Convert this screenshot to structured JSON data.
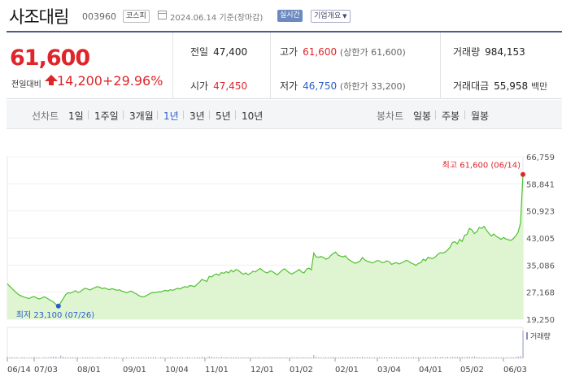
{
  "header": {
    "name": "사조대림",
    "code": "003960",
    "market": "코스피",
    "date": "2024.06.14 기준(장마감)",
    "live": "실시간",
    "company_info": "기업개요"
  },
  "quote": {
    "price": "61,600",
    "change_label": "전일대비",
    "change": "14,200",
    "change_pct": "+29.96%",
    "prev_close": {
      "label": "전일",
      "value": "47,400"
    },
    "high": {
      "label": "고가",
      "value": "61,600",
      "sub": "(상한가 61,600)"
    },
    "volume": {
      "label": "거래량",
      "value": "984,153"
    },
    "open": {
      "label": "시가",
      "value": "47,450"
    },
    "low": {
      "label": "저가",
      "value": "46,750",
      "sub": "(하한가 33,200)"
    },
    "amount": {
      "label": "거래대금",
      "value": "55,958",
      "unit": "백만"
    }
  },
  "tabs": {
    "line_label": "선차트",
    "periods": [
      "1일",
      "1주일",
      "3개월",
      "1년",
      "3년",
      "5년",
      "10년"
    ],
    "selected": "1년",
    "candle_label": "봉차트",
    "candles": [
      "일봉",
      "주봉",
      "월봉"
    ]
  },
  "chart_data": {
    "type": "area",
    "ylim": [
      19250,
      66759
    ],
    "yticks": [
      "66,759",
      "58,841",
      "50,923",
      "43,005",
      "35,086",
      "27,168",
      "19,250"
    ],
    "xticks": [
      "06/14",
      "07/03",
      "08/01",
      "09/01",
      "10/04",
      "11/01",
      "12/01",
      "01/02",
      "02/01",
      "03/04",
      "04/01",
      "05/02",
      "06/03"
    ],
    "max_label": "최고 61,600 (06/14)",
    "min_label": "최저 23,100 (07/26)",
    "volume_label": "거래량",
    "colors": {
      "line": "#4fc12f",
      "fill": "#dff5d2",
      "max": "#e0252a",
      "min": "#2b5dc9"
    },
    "values": [
      29600,
      28900,
      28200,
      27500,
      26800,
      26300,
      26000,
      25700,
      25500,
      25300,
      25700,
      25900,
      25500,
      25200,
      25400,
      25800,
      25600,
      25100,
      24700,
      24300,
      23600,
      23100,
      24200,
      25300,
      26500,
      27000,
      26900,
      27200,
      27600,
      27100,
      27300,
      27900,
      28300,
      28100,
      27800,
      28200,
      28500,
      28800,
      28600,
      28200,
      28400,
      28100,
      27900,
      28200,
      28000,
      27700,
      27900,
      27500,
      27300,
      27000,
      27300,
      27500,
      27000,
      26700,
      26200,
      25900,
      25800,
      26100,
      26500,
      26900,
      27100,
      27000,
      27300,
      27200,
      27500,
      27700,
      27500,
      27900,
      27700,
      28000,
      28300,
      28100,
      28500,
      28800,
      28600,
      29100,
      29000,
      28800,
      29500,
      30100,
      30900,
      30600,
      30300,
      31800,
      31600,
      32200,
      32500,
      32100,
      32900,
      32700,
      33200,
      32800,
      33600,
      33100,
      33800,
      33500,
      32900,
      32400,
      32800,
      32300,
      32700,
      33300,
      33100,
      33700,
      34100,
      33500,
      33000,
      32800,
      33400,
      33200,
      32700,
      32200,
      32900,
      33600,
      34000,
      33400,
      32800,
      32500,
      32900,
      33300,
      33800,
      33100,
      32800,
      33900,
      34200,
      33700,
      38600,
      37500,
      37400,
      37600,
      37300,
      36800,
      37100,
      37900,
      38500,
      38900,
      38000,
      37700,
      37500,
      37800,
      36900,
      36400,
      36000,
      35600,
      35900,
      36200,
      37300,
      36600,
      36200,
      36000,
      35700,
      36000,
      36400,
      36300,
      35800,
      35900,
      36300,
      36100,
      35300,
      35600,
      35800,
      35400,
      35700,
      36100,
      36500,
      36200,
      35700,
      35400,
      35000,
      35600,
      35800,
      36800,
      36400,
      37400,
      37100,
      37000,
      37500,
      38200,
      38700,
      38600,
      38900,
      39500,
      40300,
      41700,
      41900,
      41300,
      42600,
      42000,
      43800,
      44100,
      45800,
      45400,
      44300,
      44800,
      46100,
      45800,
      46400,
      45300,
      44400,
      43600,
      44200,
      43500,
      43100,
      42600,
      43200,
      42700,
      42500,
      42300,
      42800,
      43600,
      44700,
      47400,
      61600
    ],
    "volumes": [
      3,
      2,
      2,
      2,
      2,
      1,
      2,
      2,
      1,
      2,
      2,
      3,
      2,
      2,
      1,
      2,
      2,
      2,
      3,
      4,
      3,
      2,
      6,
      3,
      2,
      2,
      2,
      2,
      2,
      2,
      1,
      2,
      2,
      2,
      2,
      2,
      1,
      2,
      2,
      1,
      2,
      2,
      2,
      1,
      2,
      2,
      1,
      1,
      2,
      2,
      1,
      2,
      2,
      1,
      2,
      2,
      1,
      2,
      2,
      2,
      2,
      2,
      1,
      2,
      2,
      1,
      2,
      2,
      2,
      1,
      2,
      2,
      2,
      1,
      2,
      2,
      1,
      2,
      2,
      2,
      3,
      2,
      2,
      4,
      3,
      2,
      2,
      2,
      3,
      2,
      2,
      2,
      2,
      2,
      2,
      2,
      2,
      2,
      2,
      2,
      2,
      2,
      2,
      2,
      2,
      2,
      2,
      2,
      2,
      2,
      2,
      2,
      2,
      2,
      2,
      2,
      2,
      2,
      2,
      2,
      2,
      2,
      2,
      2,
      2,
      2,
      7,
      3,
      2,
      2,
      2,
      2,
      2,
      2,
      3,
      2,
      2,
      2,
      2,
      2,
      2,
      2,
      2,
      2,
      2,
      2,
      3,
      2,
      2,
      2,
      2,
      2,
      2,
      2,
      2,
      2,
      2,
      2,
      2,
      2,
      2,
      2,
      2,
      2,
      2,
      2,
      2,
      2,
      2,
      2,
      2,
      2,
      2,
      2,
      2,
      2,
      3,
      2,
      2,
      3,
      2,
      3,
      2,
      3,
      3,
      3,
      3,
      3,
      2,
      3,
      3,
      3,
      4,
      3,
      2,
      2,
      2,
      2,
      2,
      2,
      2,
      2,
      2,
      2,
      2,
      2,
      2,
      2,
      2,
      3,
      4,
      5,
      60
    ]
  }
}
